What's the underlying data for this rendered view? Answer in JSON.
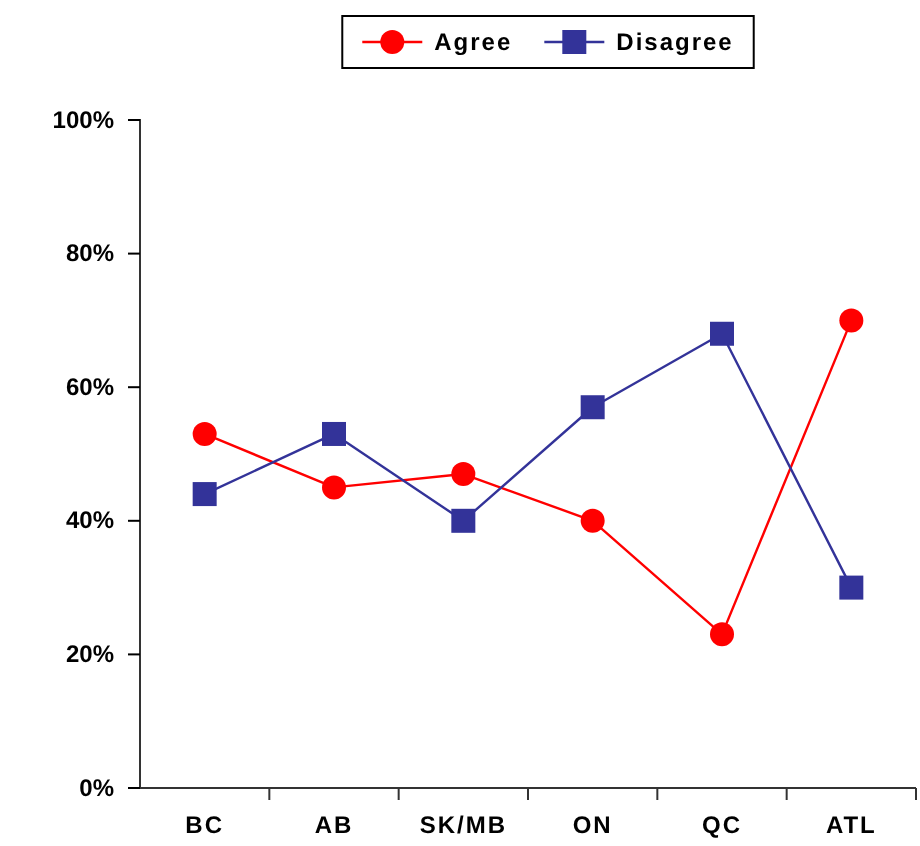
{
  "chart_data": {
    "type": "line",
    "categories": [
      "BC",
      "AB",
      "SK/MB",
      "ON",
      "QC",
      "ATL"
    ],
    "series": [
      {
        "name": "Agree",
        "color": "#ff0000",
        "marker": "circle",
        "values": [
          53,
          45,
          47,
          40,
          23,
          70
        ]
      },
      {
        "name": "Disagree",
        "color": "#333399",
        "marker": "square",
        "values": [
          44,
          53,
          40,
          57,
          68,
          30
        ]
      }
    ],
    "ylim": [
      0,
      100
    ],
    "yticks": [
      {
        "value": 0,
        "label": "0%"
      },
      {
        "value": 20,
        "label": "20%"
      },
      {
        "value": 40,
        "label": "40%"
      },
      {
        "value": 60,
        "label": "60%"
      },
      {
        "value": 80,
        "label": "80%"
      },
      {
        "value": 100,
        "label": "100%"
      }
    ],
    "grid": false,
    "legend": "top"
  }
}
